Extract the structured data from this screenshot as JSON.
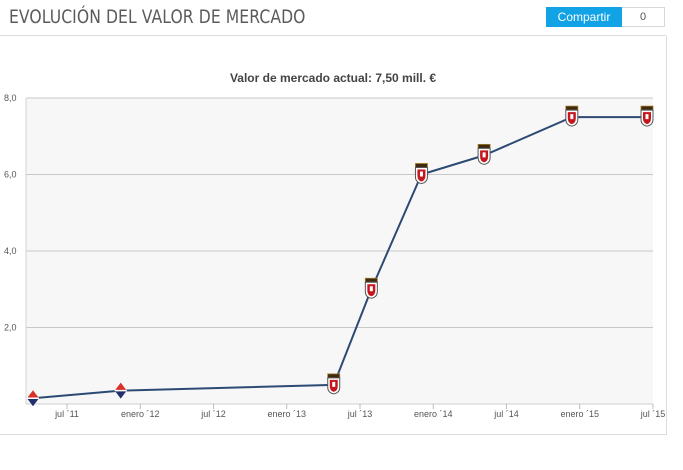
{
  "header": {
    "title": "EVOLUCIÓN DEL VALOR DE MERCADO",
    "share_label": "Compartir",
    "share_count": "0",
    "accent_color": "#11a3e6"
  },
  "chart_data": {
    "type": "line",
    "title": "Valor de mercado actual: 7,50 mill. €",
    "xlabel": "",
    "ylabel": "",
    "grid": true,
    "ylim": [
      0,
      8
    ],
    "yticks": [
      "2,0",
      "4,0",
      "6,0",
      "8,0"
    ],
    "xticks": [
      "jul ´11",
      "enero ´12",
      "jul ´12",
      "enero ´13",
      "jul ´13",
      "enero ´14",
      "jul ´14",
      "enero ´15",
      "jul ´15"
    ],
    "line_color": "#2c4a73",
    "series": [
      {
        "points": [
          {
            "date": "2011-06",
            "value": 0.15,
            "club_icon": "red-blue-diamond-crest-icon"
          },
          {
            "date": "2012-01",
            "value": 0.35,
            "club_icon": "red-blue-diamond-crest-icon"
          },
          {
            "date": "2013-06",
            "value": 0.5,
            "club_icon": "red-shield-crest-icon"
          },
          {
            "date": "2013-09",
            "value": 3.0,
            "club_icon": "red-shield-crest-icon"
          },
          {
            "date": "2014-01",
            "value": 6.0,
            "club_icon": "red-shield-crest-icon"
          },
          {
            "date": "2014-06",
            "value": 6.5,
            "club_icon": "red-shield-crest-icon"
          },
          {
            "date": "2015-01",
            "value": 7.5,
            "club_icon": "red-shield-crest-icon"
          },
          {
            "date": "2015-07",
            "value": 7.5,
            "club_icon": "red-shield-crest-icon"
          }
        ]
      }
    ]
  }
}
